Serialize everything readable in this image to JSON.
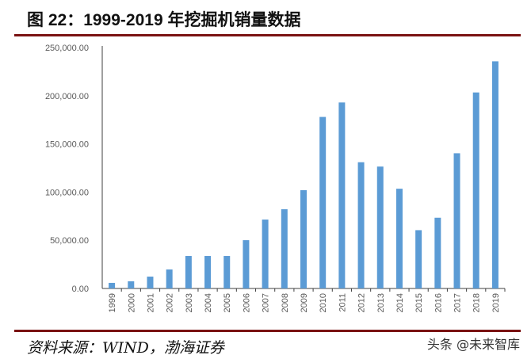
{
  "title": "图 22：1999-2019 年挖掘机销量数据",
  "source": "资料来源：WIND，渤海证券",
  "watermark": "头条 @未来智库",
  "chart_data": {
    "type": "bar",
    "title": "图 22：1999-2019 年挖掘机销量数据",
    "xlabel": "",
    "ylabel": "",
    "ylim": [
      0,
      250000
    ],
    "yticks": [
      "0.00",
      "50,000.00",
      "100,000.00",
      "150,000.00",
      "200,000.00",
      "250,000.00"
    ],
    "grid": false,
    "color": "#5b9bd5",
    "categories": [
      "1999",
      "2000",
      "2001",
      "2002",
      "2003",
      "2004",
      "2005",
      "2006",
      "2007",
      "2008",
      "2009",
      "2010",
      "2011",
      "2012",
      "2013",
      "2014",
      "2015",
      "2016",
      "2017",
      "2018",
      "2019"
    ],
    "values": [
      5800,
      7500,
      12300,
      19700,
      33700,
      33700,
      33700,
      50100,
      71500,
      82200,
      102000,
      178000,
      193000,
      131000,
      126500,
      103500,
      60500,
      73400,
      140300,
      203400,
      235700
    ]
  }
}
